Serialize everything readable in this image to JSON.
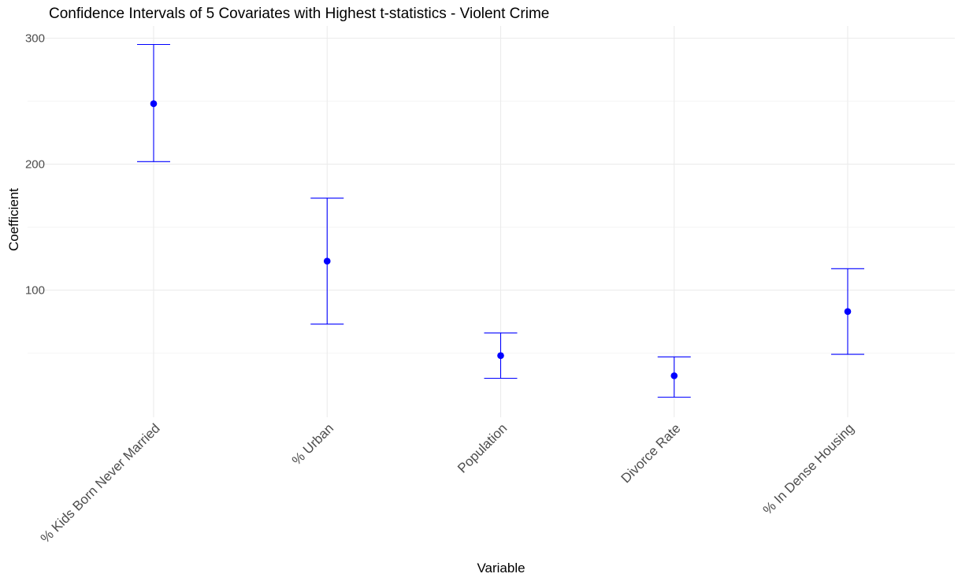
{
  "chart_data": {
    "type": "errorbar",
    "title": "Confidence Intervals of 5 Covariates with Highest t-statistics - Violent Crime",
    "xlabel": "Variable",
    "ylabel": "Coefficient",
    "categories": [
      "% Kids Born Never Married",
      "% Urban",
      "Population",
      "Divorce Rate",
      "% In Dense Housing"
    ],
    "estimates": [
      248,
      123,
      48,
      32,
      83
    ],
    "lower": [
      202,
      73,
      30,
      15,
      49
    ],
    "upper": [
      295,
      173,
      66,
      47,
      117
    ],
    "y_ticks": [
      100,
      200,
      300
    ],
    "ylim": [
      5,
      310
    ],
    "grid": true,
    "legend": "none",
    "colors": {
      "point": "#0000ff",
      "errorbar": "#0000ff",
      "grid_major": "#ebebeb",
      "grid_minor": "#f2f2f2"
    }
  }
}
